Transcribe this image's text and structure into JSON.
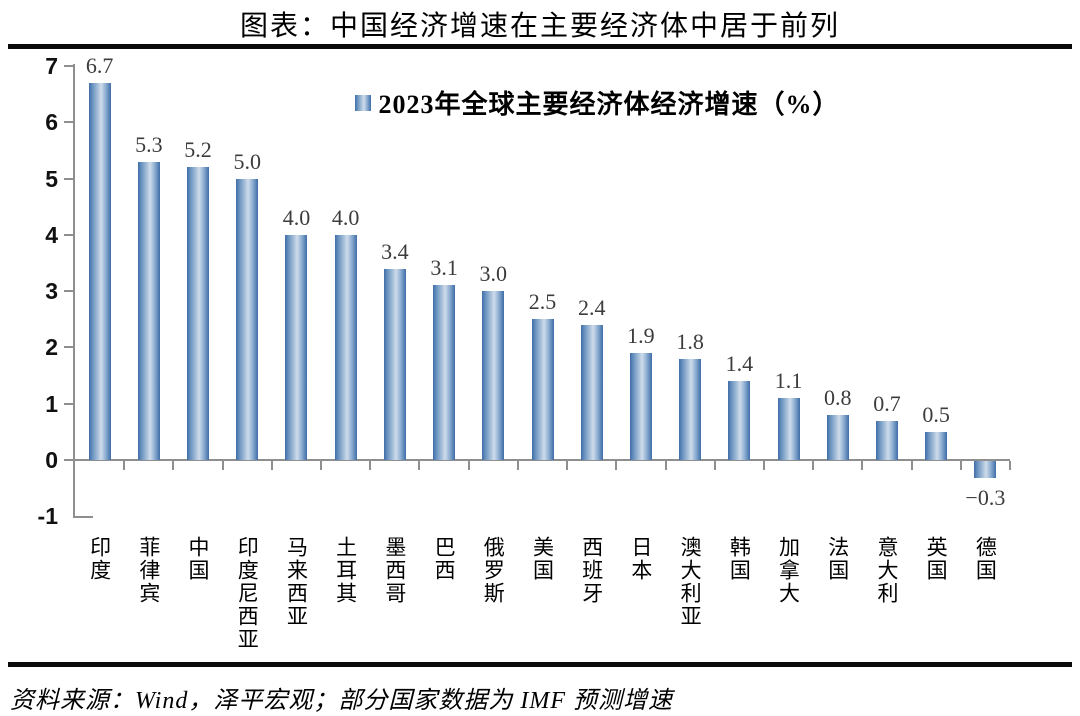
{
  "title": "图表：中国经济增速在主要经济体中居于前列",
  "legend_label": "2023年全球主要经济体经济增速（%）",
  "source": "资料来源：Wind，泽平宏观；部分国家数据为 IMF 预测增速",
  "colors": {
    "bar_edge": "#3f6da8",
    "bar_center": "#cfdceb",
    "axis": "#8f8f8f",
    "value_label": "#3c3c3c",
    "rule": "#0a0a0a"
  },
  "chart_data": {
    "type": "bar",
    "title": "图表：中国经济增速在主要经济体中居于前列",
    "legend": "2023年全球主要经济体经济增速（%）",
    "legend_position": "top-center",
    "grid": false,
    "categories": [
      "印度",
      "菲律宾",
      "中国",
      "印度尼西亚",
      "马来西亚",
      "土耳其",
      "墨西哥",
      "巴西",
      "俄罗斯",
      "美国",
      "西班牙",
      "日本",
      "澳大利亚",
      "韩国",
      "加拿大",
      "法国",
      "意大利",
      "英国",
      "德国"
    ],
    "values": [
      6.7,
      5.3,
      5.2,
      5.0,
      4.0,
      4.0,
      3.4,
      3.1,
      3.0,
      2.5,
      2.4,
      1.9,
      1.8,
      1.4,
      1.1,
      0.8,
      0.7,
      0.5,
      -0.3
    ],
    "value_labels": [
      "6.7",
      "5.3",
      "5.2",
      "5.0",
      "4.0",
      "4.0",
      "3.4",
      "3.1",
      "3.0",
      "2.5",
      "2.4",
      "1.9",
      "1.8",
      "1.4",
      "1.1",
      "0.8",
      "0.7",
      "0.5",
      "−0.3"
    ],
    "ylim": [
      -1,
      7
    ],
    "yticks": [
      "7",
      "6",
      "5",
      "4",
      "3",
      "2",
      "1",
      "0",
      "-1"
    ],
    "ytick_values": [
      7,
      6,
      5,
      4,
      3,
      2,
      1,
      0,
      -1
    ]
  }
}
